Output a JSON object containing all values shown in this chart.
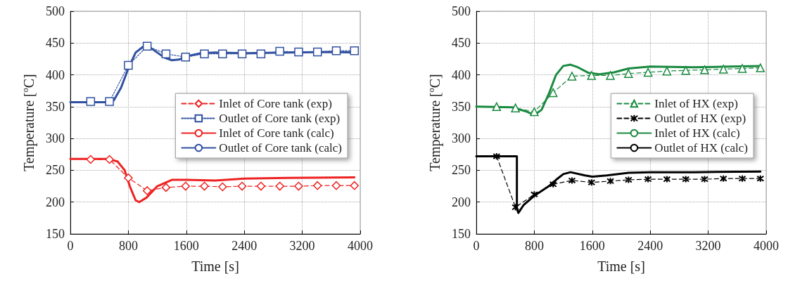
{
  "chart_data": [
    {
      "type": "line",
      "xlabel": "Time [s]",
      "ylabel": "Temperature [$^{o}$C]",
      "xlim": [
        0,
        4000
      ],
      "xticks": [
        0,
        800,
        1600,
        2400,
        3200,
        4000
      ],
      "ylim": [
        150,
        500
      ],
      "yticks": [
        150,
        200,
        250,
        300,
        350,
        400,
        450,
        500
      ],
      "grid": true,
      "legend": "right",
      "series": [
        {
          "name": "Inlet of Core tank (exp)",
          "color": "#ee2222",
          "marker": "diamond",
          "line_style": "dashed",
          "x": [
            280,
            540,
            800,
            1060,
            1320,
            1590,
            1850,
            2100,
            2370,
            2630,
            2890,
            3150,
            3410,
            3670,
            3920
          ],
          "values": [
            267,
            267,
            238,
            218,
            223,
            225,
            225,
            224,
            225,
            225,
            225,
            225,
            226,
            226,
            226
          ]
        },
        {
          "name": "Outlet of Core tank (exp)",
          "color": "#3050a0",
          "marker": "square",
          "line_style": "dotted",
          "x": [
            280,
            540,
            800,
            1060,
            1320,
            1590,
            1850,
            2100,
            2370,
            2630,
            2890,
            3150,
            3410,
            3670,
            3920
          ],
          "values": [
            358,
            358,
            415,
            445,
            433,
            428,
            433,
            433,
            433,
            433,
            437,
            436,
            436,
            438,
            438
          ]
        },
        {
          "name": "Inlet of Core tank (calc)",
          "color": "#ee2222",
          "marker": "none",
          "line_style": "solid",
          "x": [
            0,
            500,
            650,
            750,
            820,
            900,
            950,
            1050,
            1200,
            1400,
            1600,
            2000,
            2400,
            3000,
            3920
          ],
          "values": [
            268,
            268,
            264,
            250,
            225,
            203,
            200,
            207,
            225,
            235,
            235,
            234,
            237,
            238,
            239
          ]
        },
        {
          "name": "Outlet of Core tank (calc)",
          "color": "#3050a0",
          "marker": "none",
          "line_style": "solid",
          "x": [
            0,
            500,
            600,
            700,
            800,
            900,
            1000,
            1100,
            1200,
            1300,
            1400,
            1500,
            1600,
            1800,
            2000,
            2400,
            3000,
            3600,
            3920
          ],
          "values": [
            357,
            357,
            360,
            380,
            410,
            435,
            444,
            443,
            435,
            427,
            423,
            424,
            429,
            434,
            435,
            434,
            435,
            436,
            435
          ]
        }
      ]
    },
    {
      "type": "line",
      "xlabel": "Time [s]",
      "ylabel": "Temperature [$^{o}$C]",
      "xlim": [
        0,
        4000
      ],
      "xticks": [
        0,
        800,
        1600,
        2400,
        3200,
        4000
      ],
      "ylim": [
        150,
        500
      ],
      "yticks": [
        150,
        200,
        250,
        300,
        350,
        400,
        450,
        500
      ],
      "grid": true,
      "legend": "right",
      "series": [
        {
          "name": "Inlet of HX (exp)",
          "color": "#1a8a40",
          "marker": "triangle",
          "line_style": "dashed",
          "x": [
            280,
            540,
            800,
            1060,
            1320,
            1590,
            1850,
            2100,
            2370,
            2630,
            2890,
            3150,
            3410,
            3670,
            3920
          ],
          "values": [
            350,
            348,
            342,
            372,
            398,
            399,
            399,
            402,
            404,
            406,
            407,
            408,
            409,
            410,
            411
          ]
        },
        {
          "name": "Outlet of HX (exp)",
          "color": "#000000",
          "marker": "cross",
          "line_style": "dashed",
          "x": [
            280,
            540,
            800,
            1060,
            1320,
            1590,
            1850,
            2100,
            2370,
            2630,
            2890,
            3150,
            3410,
            3670,
            3920
          ],
          "values": [
            272,
            192,
            212,
            228,
            234,
            231,
            233,
            235,
            236,
            236,
            236,
            236,
            237,
            237,
            237
          ]
        },
        {
          "name": "Inlet of HX (calc)",
          "color": "#1a8a40",
          "marker": "none",
          "line_style": "solid",
          "x": [
            0,
            500,
            700,
            800,
            900,
            1000,
            1100,
            1200,
            1300,
            1400,
            1550,
            1700,
            1900,
            2100,
            2400,
            3000,
            3500,
            3920
          ],
          "values": [
            350,
            349,
            342,
            337,
            345,
            370,
            400,
            414,
            416,
            412,
            403,
            401,
            404,
            410,
            413,
            412,
            413,
            414
          ]
        },
        {
          "name": "Outlet of HX (calc)",
          "color": "#000000",
          "marker": "none",
          "line_style": "solid",
          "x": [
            0,
            560,
            560,
            580,
            650,
            800,
            1000,
            1100,
            1200,
            1300,
            1500,
            1600,
            1800,
            2100,
            2400,
            3000,
            3920
          ],
          "values": [
            272,
            272,
            190,
            183,
            195,
            210,
            225,
            235,
            244,
            247,
            242,
            240,
            242,
            246,
            247,
            247,
            248
          ]
        }
      ]
    }
  ]
}
